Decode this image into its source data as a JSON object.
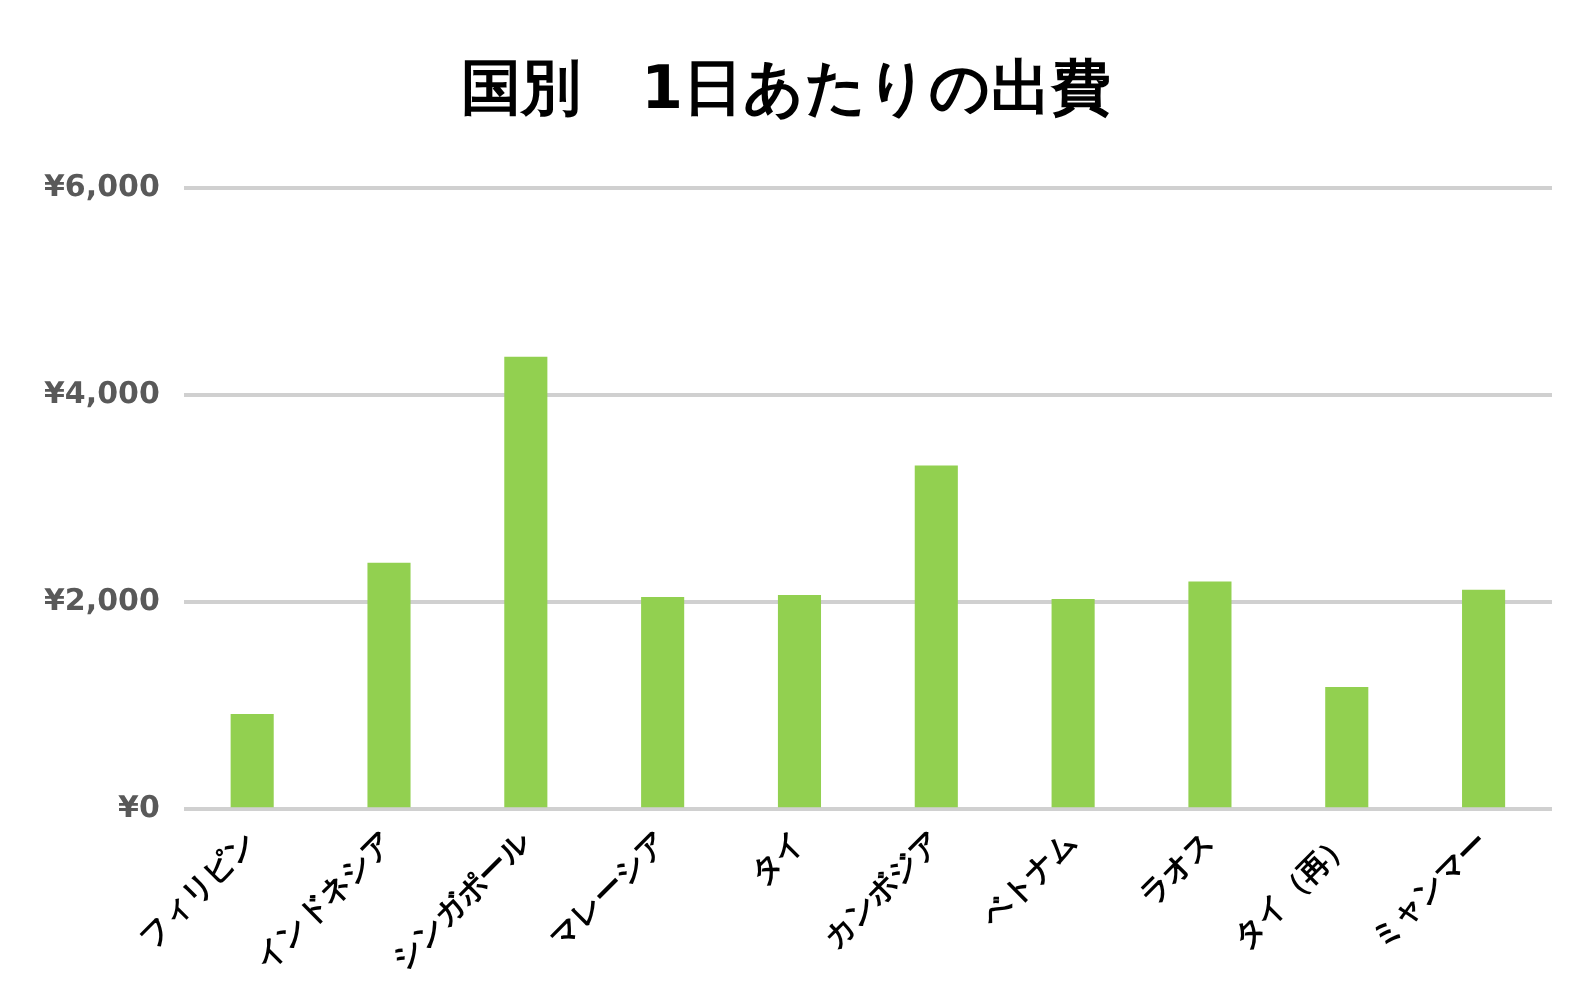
{
  "chart_data": {
    "type": "bar",
    "title": "国別　1日あたりの出費",
    "categories": [
      "フィリピン",
      "インドネシア",
      "シンガポール",
      "マレーシア",
      "タイ",
      "カンボジア",
      "ベトナム",
      "ラオス",
      "タイ（再）",
      "ミャンマー"
    ],
    "values": [
      920,
      2380,
      4370,
      2050,
      2070,
      3320,
      2030,
      2200,
      1180,
      2120
    ],
    "color": "#92d050",
    "ylim": [
      0,
      6000
    ],
    "yticks": [
      {
        "value": 0,
        "label": "¥0"
      },
      {
        "value": 2000,
        "label": "¥2,000"
      },
      {
        "value": 4000,
        "label": "¥4,000"
      },
      {
        "value": 6000,
        "label": "¥6,000"
      }
    ],
    "grid": "y"
  }
}
